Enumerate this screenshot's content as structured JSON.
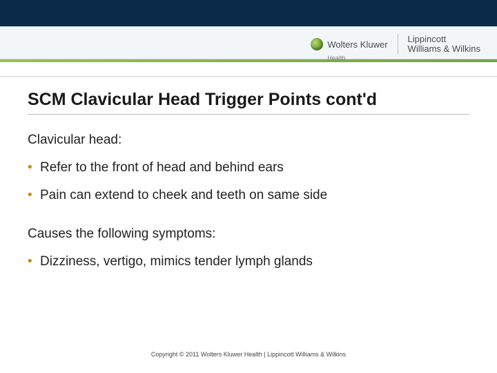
{
  "brand": {
    "wk_name": "Wolters Kluwer",
    "wk_sub": "Health",
    "lww_line1": "Lippincott",
    "lww_line2": "Williams & Wilkins"
  },
  "title": "SCM Clavicular Head Trigger Points cont'd",
  "section1": {
    "heading": "Clavicular head:",
    "items": [
      "Refer to the front of head and behind ears",
      "Pain can extend to cheek and teeth on same side"
    ]
  },
  "section2": {
    "heading": "Causes the following symptoms:",
    "items": [
      "Dizziness, vertigo, mimics tender lymph glands"
    ]
  },
  "footer": "Copyright © 2011 Wolters Kluwer Health | Lippincott Williams & Wilkins",
  "colors": {
    "header_dark": "#0b2a4a",
    "header_light": "#f3f6f9",
    "accent_green": "#6ba03a",
    "bullet": "#d08a00",
    "text": "#222222",
    "rule": "#bcbcbc"
  }
}
